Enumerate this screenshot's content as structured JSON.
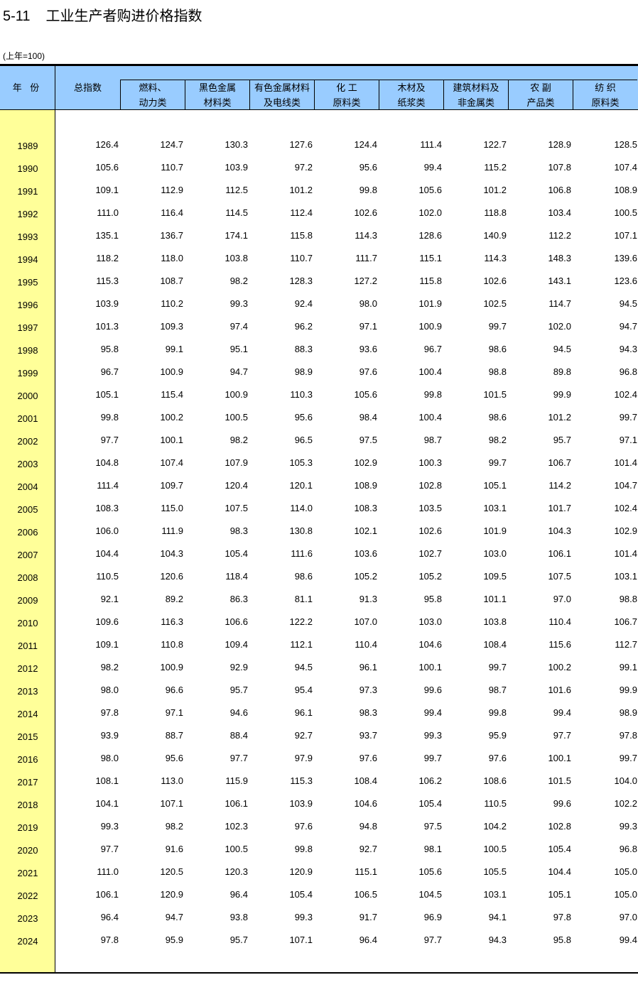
{
  "title": {
    "number": "5-11",
    "text": "工业生产者购进价格指数"
  },
  "unit": "(上年=100)",
  "colors": {
    "header_bg": "#99CCFF",
    "year_col_bg": "#FFFF99"
  },
  "headers": {
    "year": "年 份",
    "total": "总指数",
    "sub": [
      [
        "燃料、",
        "动力类"
      ],
      [
        "黑色金属",
        "材料类"
      ],
      [
        "有色金属材料",
        "及电线类"
      ],
      [
        "化 工",
        "原料类"
      ],
      [
        "木材及",
        "纸浆类"
      ],
      [
        "建筑材料及",
        "非金属类"
      ],
      [
        "农 副",
        "产品类"
      ],
      [
        "纺 织",
        "原料类"
      ]
    ]
  },
  "rows": [
    [
      "1989",
      "126.4",
      "124.7",
      "130.3",
      "127.6",
      "124.4",
      "111.4",
      "122.7",
      "128.9",
      "128.5"
    ],
    [
      "1990",
      "105.6",
      "110.7",
      "103.9",
      "97.2",
      "95.6",
      "99.4",
      "115.2",
      "107.8",
      "107.4"
    ],
    [
      "1991",
      "109.1",
      "112.9",
      "112.5",
      "101.2",
      "99.8",
      "105.6",
      "101.2",
      "106.8",
      "108.9"
    ],
    [
      "1992",
      "111.0",
      "116.4",
      "114.5",
      "112.4",
      "102.6",
      "102.0",
      "118.8",
      "103.4",
      "100.5"
    ],
    [
      "1993",
      "135.1",
      "136.7",
      "174.1",
      "115.8",
      "114.3",
      "128.6",
      "140.9",
      "112.2",
      "107.1"
    ],
    [
      "1994",
      "118.2",
      "118.0",
      "103.8",
      "110.7",
      "111.7",
      "115.1",
      "114.3",
      "148.3",
      "139.6"
    ],
    [
      "1995",
      "115.3",
      "108.7",
      "98.2",
      "128.3",
      "127.2",
      "115.8",
      "102.6",
      "143.1",
      "123.6"
    ],
    [
      "1996",
      "103.9",
      "110.2",
      "99.3",
      "92.4",
      "98.0",
      "101.9",
      "102.5",
      "114.7",
      "94.5"
    ],
    [
      "1997",
      "101.3",
      "109.3",
      "97.4",
      "96.2",
      "97.1",
      "100.9",
      "99.7",
      "102.0",
      "94.7"
    ],
    [
      "1998",
      "95.8",
      "99.1",
      "95.1",
      "88.3",
      "93.6",
      "96.7",
      "98.6",
      "94.5",
      "94.3"
    ],
    [
      "1999",
      "96.7",
      "100.9",
      "94.7",
      "98.9",
      "97.6",
      "100.4",
      "98.8",
      "89.8",
      "96.8"
    ],
    [
      "2000",
      "105.1",
      "115.4",
      "100.9",
      "110.3",
      "105.6",
      "99.8",
      "101.5",
      "99.9",
      "102.4"
    ],
    [
      "2001",
      "99.8",
      "100.2",
      "100.5",
      "95.6",
      "98.4",
      "100.4",
      "98.6",
      "101.2",
      "99.7"
    ],
    [
      "2002",
      "97.7",
      "100.1",
      "98.2",
      "96.5",
      "97.5",
      "98.7",
      "98.2",
      "95.7",
      "97.1"
    ],
    [
      "2003",
      "104.8",
      "107.4",
      "107.9",
      "105.3",
      "102.9",
      "100.3",
      "99.7",
      "106.7",
      "101.4"
    ],
    [
      "2004",
      "111.4",
      "109.7",
      "120.4",
      "120.1",
      "108.9",
      "102.8",
      "105.1",
      "114.2",
      "104.7"
    ],
    [
      "2005",
      "108.3",
      "115.0",
      "107.5",
      "114.0",
      "108.3",
      "103.5",
      "103.1",
      "101.7",
      "102.4"
    ],
    [
      "2006",
      "106.0",
      "111.9",
      "98.3",
      "130.8",
      "102.1",
      "102.6",
      "101.9",
      "104.3",
      "102.9"
    ],
    [
      "2007",
      "104.4",
      "104.3",
      "105.4",
      "111.6",
      "103.6",
      "102.7",
      "103.0",
      "106.1",
      "101.4"
    ],
    [
      "2008",
      "110.5",
      "120.6",
      "118.4",
      "98.6",
      "105.2",
      "105.2",
      "109.5",
      "107.5",
      "103.1"
    ],
    [
      "2009",
      "92.1",
      "89.2",
      "86.3",
      "81.1",
      "91.3",
      "95.8",
      "101.1",
      "97.0",
      "98.8"
    ],
    [
      "2010",
      "109.6",
      "116.3",
      "106.6",
      "122.2",
      "107.0",
      "103.0",
      "103.8",
      "110.4",
      "106.7"
    ],
    [
      "2011",
      "109.1",
      "110.8",
      "109.4",
      "112.1",
      "110.4",
      "104.6",
      "108.4",
      "115.6",
      "112.7"
    ],
    [
      "2012",
      "98.2",
      "100.9",
      "92.9",
      "94.5",
      "96.1",
      "100.1",
      "99.7",
      "100.2",
      "99.1"
    ],
    [
      "2013",
      "98.0",
      "96.6",
      "95.7",
      "95.4",
      "97.3",
      "99.6",
      "98.7",
      "101.6",
      "99.9"
    ],
    [
      "2014",
      "97.8",
      "97.1",
      "94.6",
      "96.1",
      "98.3",
      "99.4",
      "99.8",
      "99.4",
      "98.9"
    ],
    [
      "2015",
      "93.9",
      "88.7",
      "88.4",
      "92.7",
      "93.7",
      "99.3",
      "95.9",
      "97.7",
      "97.8"
    ],
    [
      "2016",
      "98.0",
      "95.6",
      "97.7",
      "97.9",
      "97.6",
      "99.7",
      "97.6",
      "100.1",
      "99.7"
    ],
    [
      "2017",
      "108.1",
      "113.0",
      "115.9",
      "115.3",
      "108.4",
      "106.2",
      "108.6",
      "101.5",
      "104.0"
    ],
    [
      "2018",
      "104.1",
      "107.1",
      "106.1",
      "103.9",
      "104.6",
      "105.4",
      "110.5",
      "99.6",
      "102.2"
    ],
    [
      "2019",
      "99.3",
      "98.2",
      "102.3",
      "97.6",
      "94.8",
      "97.5",
      "104.2",
      "102.8",
      "99.3"
    ],
    [
      "2020",
      "97.7",
      "91.6",
      "100.5",
      "99.8",
      "92.7",
      "98.1",
      "100.5",
      "105.4",
      "96.8"
    ],
    [
      "2021",
      "111.0",
      "120.5",
      "120.3",
      "120.9",
      "115.1",
      "105.6",
      "105.5",
      "104.4",
      "105.0"
    ],
    [
      "2022",
      "106.1",
      "120.9",
      "96.4",
      "105.4",
      "106.5",
      "104.5",
      "103.1",
      "105.1",
      "105.0"
    ],
    [
      "2023",
      "96.4",
      "94.7",
      "93.8",
      "99.3",
      "91.7",
      "96.9",
      "94.1",
      "97.8",
      "97.0"
    ],
    [
      "2024",
      "97.8",
      "95.9",
      "95.7",
      "107.1",
      "96.4",
      "97.7",
      "94.3",
      "95.8",
      "99.4"
    ]
  ]
}
